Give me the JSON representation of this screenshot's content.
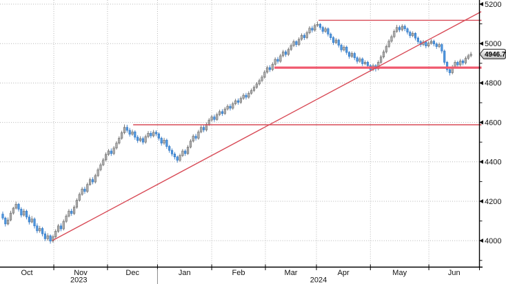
{
  "chart": {
    "last_price_label": "4946.71"
  },
  "chart_data": {
    "type": "candlestick",
    "title": "",
    "instrument_last_price": 4946.71,
    "ylim": [
      3866,
      5221
    ],
    "y_major_gridline_prices": [
      5200,
      5000,
      4800,
      4600,
      4400,
      4200,
      4000
    ],
    "y_major_labels": [
      "5200",
      "5000",
      "4800",
      "4600",
      "4400",
      "4200",
      "4000"
    ],
    "y_minor_tick_prices": [
      5100,
      4900,
      4700,
      4500,
      4300,
      4100,
      3900
    ],
    "x_month_labels": [
      "Oct",
      "Nov",
      "Dec",
      "Jan",
      "Feb",
      "Mar",
      "Apr",
      "May",
      "Jun"
    ],
    "x_year_labels": [
      {
        "label": "2023",
        "from_boundary": -1,
        "to_boundary": 2
      },
      {
        "label": "2024",
        "from_boundary": 2,
        "to_boundary": 8
      }
    ],
    "month_boundaries_index": [
      19.3,
      39.6,
      58.5,
      79.0,
      99.3,
      118.6,
      139.0,
      161.1
    ],
    "year_separator_boundary": 2,
    "legend": "none",
    "grid": "dotted",
    "annotations": [
      {
        "name": "resistance-upper-line",
        "type": "hline",
        "price": 5118,
        "from_index": 119.4,
        "to": "right",
        "width": 1.4,
        "color": "#d84a56"
      },
      {
        "name": "support-mid-line",
        "type": "hline",
        "price": 4878,
        "from_index": 102.7,
        "to": "right",
        "width": 3.2,
        "color": "#f0596e"
      },
      {
        "name": "support-lower-line",
        "type": "hline",
        "price": 4588,
        "from_index": 49.3,
        "to": "right",
        "width": 1.5,
        "color": "#d84a56"
      },
      {
        "name": "uptrend-line",
        "type": "segment",
        "from": {
          "index": 18.8,
          "price": 4001
        },
        "to": {
          "index": 180.9,
          "price": 5162
        },
        "width": 1.4,
        "color": "#d84a56"
      }
    ],
    "colors": {
      "up_fill": "#b3b3b3",
      "up_border": "#6e6e6e",
      "down_fill": "#4f98e0",
      "down_border": "#3579c4",
      "grid": "#b4b4b4",
      "axis": "#000000",
      "label": "#111111",
      "trend_red": "#d84a56",
      "support_pink": "#f0596e",
      "tag_bg_top": "#fdfdfd",
      "tag_bg_bottom": "#b9b9b9",
      "tag_border": "#3c3c3c",
      "tag_text": "#000000"
    },
    "candles_ohlc": [
      [
        4135,
        4148,
        4105,
        4115
      ],
      [
        4115,
        4122,
        4072,
        4085
      ],
      [
        4085,
        4118,
        4078,
        4105
      ],
      [
        4105,
        4152,
        4098,
        4140
      ],
      [
        4140,
        4172,
        4132,
        4165
      ],
      [
        4165,
        4198,
        4158,
        4185
      ],
      [
        4185,
        4192,
        4148,
        4160
      ],
      [
        4160,
        4170,
        4118,
        4130
      ],
      [
        4130,
        4162,
        4122,
        4150
      ],
      [
        4150,
        4158,
        4108,
        4120
      ],
      [
        4120,
        4132,
        4082,
        4095
      ],
      [
        4095,
        4125,
        4088,
        4110
      ],
      [
        4110,
        4118,
        4062,
        4075
      ],
      [
        4075,
        4088,
        4038,
        4050
      ],
      [
        4050,
        4075,
        4040,
        4062
      ],
      [
        4062,
        4070,
        4022,
        4035
      ],
      [
        4035,
        4048,
        3998,
        4010
      ],
      [
        4010,
        4038,
        4000,
        4025
      ],
      [
        4025,
        4032,
        3985,
        3998
      ],
      [
        3998,
        4030,
        3990,
        4020
      ],
      [
        4020,
        4058,
        4012,
        4048
      ],
      [
        4048,
        4085,
        4040,
        4075
      ],
      [
        4075,
        4088,
        4048,
        4060
      ],
      [
        4060,
        4108,
        4052,
        4098
      ],
      [
        4098,
        4135,
        4090,
        4125
      ],
      [
        4125,
        4160,
        4118,
        4150
      ],
      [
        4150,
        4162,
        4126,
        4138
      ],
      [
        4138,
        4180,
        4130,
        4170
      ],
      [
        4170,
        4215,
        4162,
        4205
      ],
      [
        4205,
        4245,
        4198,
        4235
      ],
      [
        4235,
        4272,
        4228,
        4262
      ],
      [
        4262,
        4274,
        4238,
        4250
      ],
      [
        4250,
        4295,
        4242,
        4285
      ],
      [
        4285,
        4320,
        4278,
        4310
      ],
      [
        4310,
        4322,
        4286,
        4298
      ],
      [
        4298,
        4340,
        4290,
        4330
      ],
      [
        4330,
        4370,
        4322,
        4360
      ],
      [
        4360,
        4395,
        4352,
        4385
      ],
      [
        4385,
        4420,
        4378,
        4410
      ],
      [
        4410,
        4448,
        4402,
        4438
      ],
      [
        4438,
        4465,
        4430,
        4455
      ],
      [
        4455,
        4468,
        4430,
        4442
      ],
      [
        4442,
        4480,
        4434,
        4470
      ],
      [
        4470,
        4505,
        4462,
        4495
      ],
      [
        4495,
        4530,
        4488,
        4520
      ],
      [
        4520,
        4558,
        4512,
        4548
      ],
      [
        4548,
        4590,
        4540,
        4575
      ],
      [
        4575,
        4588,
        4548,
        4560
      ],
      [
        4560,
        4572,
        4528,
        4540
      ],
      [
        4540,
        4564,
        4532,
        4552
      ],
      [
        4552,
        4560,
        4512,
        4525
      ],
      [
        4525,
        4535,
        4496,
        4508
      ],
      [
        4508,
        4530,
        4500,
        4518
      ],
      [
        4518,
        4528,
        4488,
        4500
      ],
      [
        4500,
        4538,
        4492,
        4528
      ],
      [
        4528,
        4556,
        4520,
        4545
      ],
      [
        4545,
        4556,
        4520,
        4532
      ],
      [
        4532,
        4562,
        4524,
        4550
      ],
      [
        4550,
        4560,
        4530,
        4542
      ],
      [
        4542,
        4550,
        4508,
        4520
      ],
      [
        4520,
        4528,
        4482,
        4495
      ],
      [
        4495,
        4522,
        4486,
        4510
      ],
      [
        4510,
        4518,
        4466,
        4478
      ],
      [
        4478,
        4486,
        4446,
        4458
      ],
      [
        4458,
        4468,
        4428,
        4440
      ],
      [
        4440,
        4450,
        4412,
        4425
      ],
      [
        4425,
        4432,
        4396,
        4408
      ],
      [
        4408,
        4442,
        4400,
        4432
      ],
      [
        4432,
        4465,
        4424,
        4455
      ],
      [
        4455,
        4464,
        4430,
        4442
      ],
      [
        4442,
        4485,
        4435,
        4475
      ],
      [
        4475,
        4515,
        4468,
        4505
      ],
      [
        4505,
        4540,
        4498,
        4530
      ],
      [
        4530,
        4542,
        4508,
        4520
      ],
      [
        4520,
        4562,
        4512,
        4552
      ],
      [
        4552,
        4585,
        4545,
        4575
      ],
      [
        4575,
        4586,
        4550,
        4562
      ],
      [
        4562,
        4600,
        4554,
        4590
      ],
      [
        4590,
        4622,
        4582,
        4612
      ],
      [
        4612,
        4638,
        4604,
        4628
      ],
      [
        4628,
        4640,
        4603,
        4615
      ],
      [
        4615,
        4650,
        4608,
        4640
      ],
      [
        4640,
        4665,
        4632,
        4655
      ],
      [
        4655,
        4667,
        4633,
        4645
      ],
      [
        4645,
        4678,
        4638,
        4668
      ],
      [
        4668,
        4692,
        4660,
        4682
      ],
      [
        4682,
        4694,
        4660,
        4672
      ],
      [
        4672,
        4705,
        4664,
        4695
      ],
      [
        4695,
        4720,
        4687,
        4710
      ],
      [
        4710,
        4722,
        4690,
        4702
      ],
      [
        4702,
        4732,
        4694,
        4722
      ],
      [
        4722,
        4748,
        4714,
        4738
      ],
      [
        4738,
        4750,
        4716,
        4728
      ],
      [
        4728,
        4758,
        4720,
        4748
      ],
      [
        4748,
        4772,
        4740,
        4762
      ],
      [
        4762,
        4788,
        4754,
        4778
      ],
      [
        4778,
        4805,
        4770,
        4795
      ],
      [
        4795,
        4822,
        4787,
        4812
      ],
      [
        4812,
        4840,
        4804,
        4830
      ],
      [
        4830,
        4865,
        4822,
        4855
      ],
      [
        4855,
        4888,
        4847,
        4878
      ],
      [
        4878,
        4890,
        4856,
        4868
      ],
      [
        4868,
        4905,
        4860,
        4895
      ],
      [
        4895,
        4930,
        4887,
        4920
      ],
      [
        4920,
        4932,
        4898,
        4910
      ],
      [
        4910,
        4948,
        4902,
        4938
      ],
      [
        4938,
        4968,
        4930,
        4958
      ],
      [
        4958,
        4967,
        4933,
        4945
      ],
      [
        4945,
        4980,
        4937,
        4970
      ],
      [
        4970,
        5000,
        4962,
        4990
      ],
      [
        4990,
        5020,
        4982,
        5010
      ],
      [
        5010,
        5017,
        4983,
        4995
      ],
      [
        4995,
        5032,
        4987,
        5022
      ],
      [
        5022,
        5052,
        5014,
        5042
      ],
      [
        5042,
        5052,
        5018,
        5030
      ],
      [
        5030,
        5065,
        5022,
        5055
      ],
      [
        5055,
        5088,
        5047,
        5078
      ],
      [
        5078,
        5090,
        5056,
        5068
      ],
      [
        5068,
        5102,
        5060,
        5092
      ],
      [
        5092,
        5112,
        5084,
        5098
      ],
      [
        5098,
        5104,
        5070,
        5082
      ],
      [
        5082,
        5090,
        5050,
        5062
      ],
      [
        5062,
        5085,
        5054,
        5075
      ],
      [
        5075,
        5082,
        5036,
        5048
      ],
      [
        5048,
        5056,
        5018,
        5030
      ],
      [
        5030,
        5038,
        4993,
        5005
      ],
      [
        5005,
        5028,
        4997,
        5018
      ],
      [
        5018,
        5024,
        4980,
        4992
      ],
      [
        4992,
        5000,
        4956,
        4968
      ],
      [
        4968,
        4992,
        4960,
        4982
      ],
      [
        4982,
        4990,
        4943,
        4955
      ],
      [
        4955,
        4962,
        4923,
        4935
      ],
      [
        4935,
        4960,
        4927,
        4950
      ],
      [
        4950,
        4958,
        4916,
        4928
      ],
      [
        4928,
        4936,
        4898,
        4910
      ],
      [
        4910,
        4932,
        4902,
        4922
      ],
      [
        4922,
        4930,
        4886,
        4898
      ],
      [
        4898,
        4915,
        4890,
        4905
      ],
      [
        4905,
        4913,
        4876,
        4888
      ],
      [
        4888,
        4896,
        4856,
        4868
      ],
      [
        4868,
        4898,
        4860,
        4888
      ],
      [
        4888,
        4896,
        4858,
        4872
      ],
      [
        4872,
        4915,
        4864,
        4905
      ],
      [
        4905,
        4942,
        4897,
        4932
      ],
      [
        4932,
        4968,
        4924,
        4958
      ],
      [
        4958,
        4995,
        4950,
        4985
      ],
      [
        4985,
        5022,
        4977,
        5012
      ],
      [
        5012,
        5045,
        5004,
        5035
      ],
      [
        5035,
        5072,
        5027,
        5062
      ],
      [
        5062,
        5095,
        5054,
        5082
      ],
      [
        5082,
        5092,
        5058,
        5070
      ],
      [
        5070,
        5098,
        5062,
        5088
      ],
      [
        5088,
        5097,
        5063,
        5075
      ],
      [
        5075,
        5082,
        5046,
        5058
      ],
      [
        5058,
        5066,
        5028,
        5040
      ],
      [
        5040,
        5062,
        5032,
        5052
      ],
      [
        5052,
        5058,
        5016,
        5028
      ],
      [
        5028,
        5036,
        4998,
        5010
      ],
      [
        5010,
        5018,
        4983,
        4995
      ],
      [
        4995,
        5018,
        4987,
        5008
      ],
      [
        5008,
        5016,
        4976,
        4988
      ],
      [
        4988,
        5012,
        4980,
        5002
      ],
      [
        5002,
        5022,
        4994,
        5012
      ],
      [
        5012,
        5020,
        4986,
        4998
      ],
      [
        4998,
        5006,
        4973,
        4985
      ],
      [
        4985,
        5005,
        4977,
        4995
      ],
      [
        4995,
        5002,
        4950,
        4962
      ],
      [
        4962,
        4970,
        4893,
        4905
      ],
      [
        4905,
        4912,
        4856,
        4868
      ],
      [
        4868,
        4876,
        4838,
        4852
      ],
      [
        4852,
        4892,
        4844,
        4882
      ],
      [
        4882,
        4915,
        4874,
        4905
      ],
      [
        4905,
        4913,
        4880,
        4892
      ],
      [
        4892,
        4922,
        4884,
        4912
      ],
      [
        4912,
        4920,
        4890,
        4902
      ],
      [
        4902,
        4935,
        4894,
        4925
      ],
      [
        4925,
        4948,
        4917,
        4938
      ],
      [
        4938,
        4958,
        4930,
        4946.71
      ]
    ]
  }
}
